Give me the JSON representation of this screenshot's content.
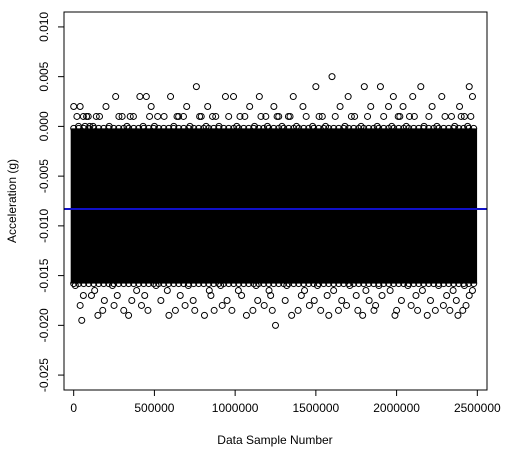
{
  "chart_data": {
    "type": "scatter",
    "xlabel": "Data Sample Number",
    "ylabel": "Acceleration (g)",
    "xlim": [
      -60000,
      2560000
    ],
    "ylim": [
      -0.0265,
      0.0115
    ],
    "x_ticks": [
      0,
      500000,
      1000000,
      1500000,
      2000000,
      2500000
    ],
    "x_tick_labels": [
      "0",
      "500000",
      "1000000",
      "1500000",
      "2000000",
      "2500000"
    ],
    "y_ticks": [
      -0.025,
      -0.02,
      -0.015,
      -0.01,
      -0.005,
      0.0,
      0.005,
      0.01
    ],
    "y_tick_labels": [
      "-0.025",
      "-0.020",
      "-0.015",
      "-0.010",
      "-0.005",
      "0.000",
      "0.005",
      "0.010"
    ],
    "grid": false,
    "legend": "none",
    "marker": "open-circle",
    "point_color": "#000000",
    "mean_line": {
      "y": -0.0083,
      "color": "#1010c8"
    },
    "dense_band": {
      "x_range": [
        0,
        2480000
      ],
      "y_range": [
        -0.0155,
        -0.0005
      ]
    },
    "series": [
      {
        "x": [
          0,
          20000,
          40000,
          60000,
          80000,
          100000,
          140000,
          200000,
          260000,
          300000,
          350000,
          410000,
          450000,
          480000,
          520000,
          600000,
          640000,
          700000,
          760000,
          790000,
          830000,
          880000,
          940000,
          990000,
          1030000,
          1090000,
          1150000,
          1190000,
          1240000,
          1270000,
          1330000,
          1360000,
          1420000,
          1500000,
          1540000,
          1600000,
          1650000,
          1700000,
          1720000,
          1800000,
          1840000,
          1900000,
          1950000,
          1980000,
          2010000,
          2040000,
          2080000,
          2100000,
          2150000,
          2220000,
          2280000,
          2340000,
          2390000,
          2420000,
          2450000,
          2470000,
          30000,
          70000,
          90000,
          120000,
          160000,
          220000,
          280000,
          330000,
          370000,
          430000,
          470000,
          500000,
          560000,
          620000,
          650000,
          680000,
          720000,
          780000,
          820000,
          860000,
          900000,
          960000,
          1010000,
          1060000,
          1120000,
          1160000,
          1200000,
          1260000,
          1290000,
          1340000,
          1380000,
          1440000,
          1480000,
          1520000,
          1560000,
          1620000,
          1680000,
          1740000,
          1780000,
          1820000,
          1880000,
          1920000,
          1970000,
          2020000,
          2060000,
          2110000,
          2170000,
          2200000,
          2250000,
          2300000,
          2360000,
          2400000,
          2440000,
          2460000,
          40000,
          150000,
          250000,
          340000,
          420000,
          590000,
          690000,
          810000,
          920000,
          1070000,
          1180000,
          1250000,
          1350000,
          1460000,
          1580000,
          1690000,
          1790000,
          1870000,
          1990000,
          2090000,
          2190000,
          2290000,
          2380000,
          2430000,
          50000,
          180000,
          310000,
          460000,
          630000,
          750000,
          870000,
          980000,
          1110000,
          1230000,
          1390000,
          1530000,
          1640000,
          1760000,
          1860000,
          2000000,
          2130000,
          2240000,
          2330000,
          2410000,
          60000,
          110000,
          190000,
          270000,
          360000,
          440000,
          540000,
          660000,
          740000,
          850000,
          950000,
          1040000,
          1140000,
          1220000,
          1310000,
          1410000,
          1490000,
          1570000,
          1660000,
          1750000,
          1830000,
          1910000,
          2030000,
          2120000,
          2210000,
          2310000,
          2370000,
          2450000,
          10000,
          130000,
          240000,
          390000,
          510000,
          580000,
          710000,
          840000,
          910000,
          1020000,
          1130000,
          1210000,
          1320000,
          1430000,
          1510000,
          1610000,
          1710000,
          1810000,
          1890000,
          1960000,
          2070000,
          2160000,
          2260000,
          2350000,
          2420000,
          2470000
        ],
        "y": [
          0.002,
          0.001,
          0.002,
          0.001,
          0.001,
          0.0,
          0.001,
          0.002,
          0.003,
          0.001,
          0.001,
          0.003,
          0.003,
          0.002,
          0.001,
          0.003,
          0.001,
          0.002,
          0.004,
          0.001,
          0.002,
          0.001,
          0.003,
          0.003,
          0.001,
          0.002,
          0.003,
          0.001,
          0.002,
          0.001,
          0.001,
          0.003,
          0.002,
          0.004,
          0.001,
          0.005,
          0.002,
          0.003,
          0.001,
          0.004,
          0.002,
          0.004,
          0.002,
          0.003,
          0.001,
          0.002,
          0.001,
          0.003,
          0.004,
          0.002,
          0.003,
          0.001,
          0.002,
          0.001,
          0.004,
          0.003,
          0.0,
          0.0,
          0.001,
          0.0,
          0.001,
          0.0,
          0.001,
          0.0,
          0.001,
          0.0,
          0.001,
          0.0,
          0.001,
          0.0,
          0.001,
          0.001,
          0.0,
          0.001,
          0.0,
          0.001,
          0.0,
          0.001,
          0.0,
          0.001,
          0.0,
          0.001,
          0.0,
          0.001,
          0.0,
          0.001,
          0.0,
          0.001,
          0.0,
          0.001,
          0.0,
          0.001,
          0.0,
          0.001,
          0.0,
          0.001,
          0.0,
          0.001,
          0.0,
          0.001,
          0.0,
          0.001,
          0.0,
          0.001,
          0.0,
          0.001,
          0.0,
          0.001,
          0.0,
          0.001,
          -0.018,
          -0.019,
          -0.018,
          -0.019,
          -0.018,
          -0.019,
          -0.018,
          -0.019,
          -0.018,
          -0.019,
          -0.018,
          -0.02,
          -0.019,
          -0.018,
          -0.019,
          -0.018,
          -0.019,
          -0.018,
          -0.019,
          -0.018,
          -0.019,
          -0.018,
          -0.019,
          -0.018,
          -0.0195,
          -0.0185,
          -0.0185,
          -0.0185,
          -0.0185,
          -0.0185,
          -0.0185,
          -0.0185,
          -0.0185,
          -0.0185,
          -0.0185,
          -0.0185,
          -0.0185,
          -0.0185,
          -0.0185,
          -0.0185,
          -0.0185,
          -0.0185,
          -0.0185,
          -0.0185,
          -0.017,
          -0.017,
          -0.0175,
          -0.017,
          -0.0175,
          -0.017,
          -0.0175,
          -0.017,
          -0.0175,
          -0.017,
          -0.0175,
          -0.017,
          -0.0175,
          -0.017,
          -0.0175,
          -0.017,
          -0.0175,
          -0.017,
          -0.0175,
          -0.017,
          -0.0175,
          -0.017,
          -0.0175,
          -0.017,
          -0.0175,
          -0.017,
          -0.0175,
          -0.017,
          -0.016,
          -0.0165,
          -0.016,
          -0.0165,
          -0.016,
          -0.0165,
          -0.016,
          -0.0165,
          -0.016,
          -0.0165,
          -0.016,
          -0.0165,
          -0.016,
          -0.0165,
          -0.016,
          -0.0165,
          -0.016,
          -0.0165,
          -0.016,
          -0.0165,
          -0.016,
          -0.0165,
          -0.016,
          -0.0165,
          -0.016,
          -0.0165
        ]
      }
    ]
  }
}
